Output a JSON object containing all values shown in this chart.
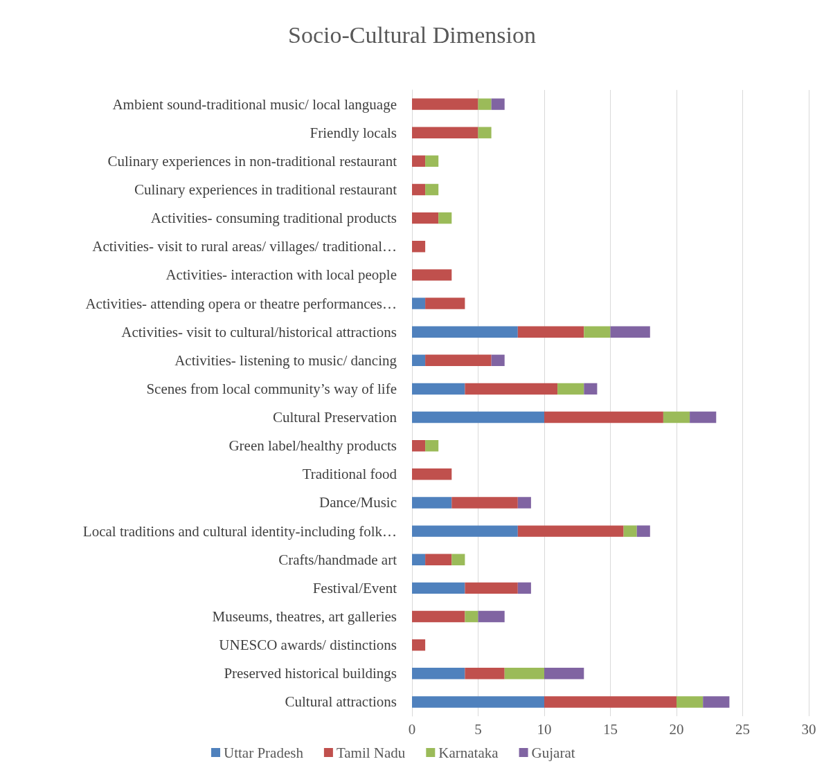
{
  "chart_data": {
    "type": "bar",
    "orientation": "horizontal",
    "stacked": true,
    "title": "Socio-Cultural Dimension",
    "categories": [
      "Ambient sound-traditional music/ local language",
      "Friendly locals",
      "Culinary experiences in non-traditional restaurant",
      "Culinary experiences in traditional restaurant",
      "Activities- consuming traditional products",
      "Activities- visit to rural areas/ villages/ traditional…",
      "Activities- interaction with local people",
      "Activities- attending opera or theatre performances…",
      "Activities- visit to cultural/historical attractions",
      "Activities- listening to music/ dancing",
      "Scenes from local community’s way of life",
      "Cultural Preservation",
      "Green label/healthy products",
      "Traditional food",
      "Dance/Music",
      "Local traditions and cultural identity-including folk…",
      "Crafts/handmade art",
      "Festival/Event",
      "Museums, theatres, art galleries",
      "UNESCO awards/ distinctions",
      "Preserved historical buildings",
      "Cultural attractions"
    ],
    "series": [
      {
        "name": "Uttar Pradesh",
        "color": "#4f81bd",
        "values": [
          0,
          0,
          0,
          0,
          0,
          0,
          0,
          1,
          8,
          1,
          4,
          10,
          0,
          0,
          3,
          8,
          1,
          4,
          0,
          0,
          4,
          10
        ]
      },
      {
        "name": "Tamil Nadu",
        "color": "#c0504d",
        "values": [
          5,
          5,
          1,
          1,
          2,
          1,
          3,
          3,
          5,
          5,
          7,
          9,
          1,
          3,
          5,
          8,
          2,
          4,
          4,
          1,
          3,
          10
        ]
      },
      {
        "name": "Karnataka",
        "color": "#9bbb59",
        "values": [
          1,
          1,
          1,
          1,
          1,
          0,
          0,
          0,
          2,
          0,
          2,
          2,
          1,
          0,
          0,
          1,
          1,
          0,
          1,
          0,
          3,
          2
        ]
      },
      {
        "name": "Gujarat",
        "color": "#8064a2",
        "values": [
          1,
          0,
          0,
          0,
          0,
          0,
          0,
          0,
          3,
          1,
          1,
          2,
          0,
          0,
          1,
          1,
          0,
          1,
          2,
          0,
          3,
          2
        ]
      }
    ],
    "xlim": [
      0,
      30
    ],
    "xticks": [
      0,
      5,
      10,
      15,
      20,
      25,
      30
    ],
    "grid": "x",
    "legend": "bottom"
  }
}
